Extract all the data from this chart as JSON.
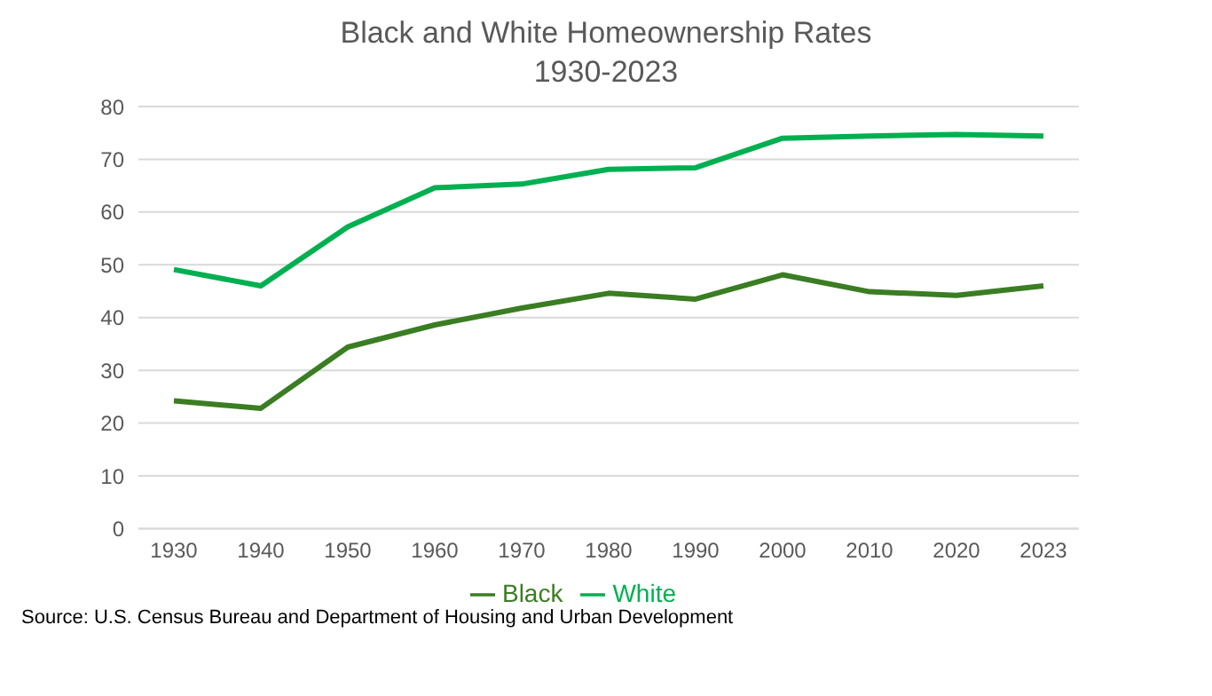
{
  "chart_data": {
    "type": "line",
    "title": "Black and White Homeownership Rates",
    "subtitle": "1930-2023",
    "categories": [
      "1930",
      "1940",
      "1950",
      "1960",
      "1970",
      "1980",
      "1990",
      "2000",
      "2010",
      "2020",
      "2023"
    ],
    "series": [
      {
        "name": "Black",
        "color": "#3a7d22",
        "values": [
          24.2,
          22.8,
          34.4,
          38.6,
          41.8,
          44.6,
          43.5,
          48.1,
          44.9,
          44.2,
          46.0
        ]
      },
      {
        "name": "White",
        "color": "#00b050",
        "values": [
          49.1,
          46.0,
          57.2,
          64.6,
          65.3,
          68.1,
          68.4,
          74.0,
          74.4,
          74.7,
          74.4
        ]
      }
    ],
    "ylim": [
      0,
      80
    ],
    "yticks": [
      0,
      10,
      20,
      30,
      40,
      50,
      60,
      70,
      80
    ],
    "grid": "y",
    "legend": "bottom",
    "marker": "none",
    "line_style": "solid",
    "annotations": [
      "Source: U.S. Census Bureau and Department of Housing and Urban Development"
    ]
  }
}
